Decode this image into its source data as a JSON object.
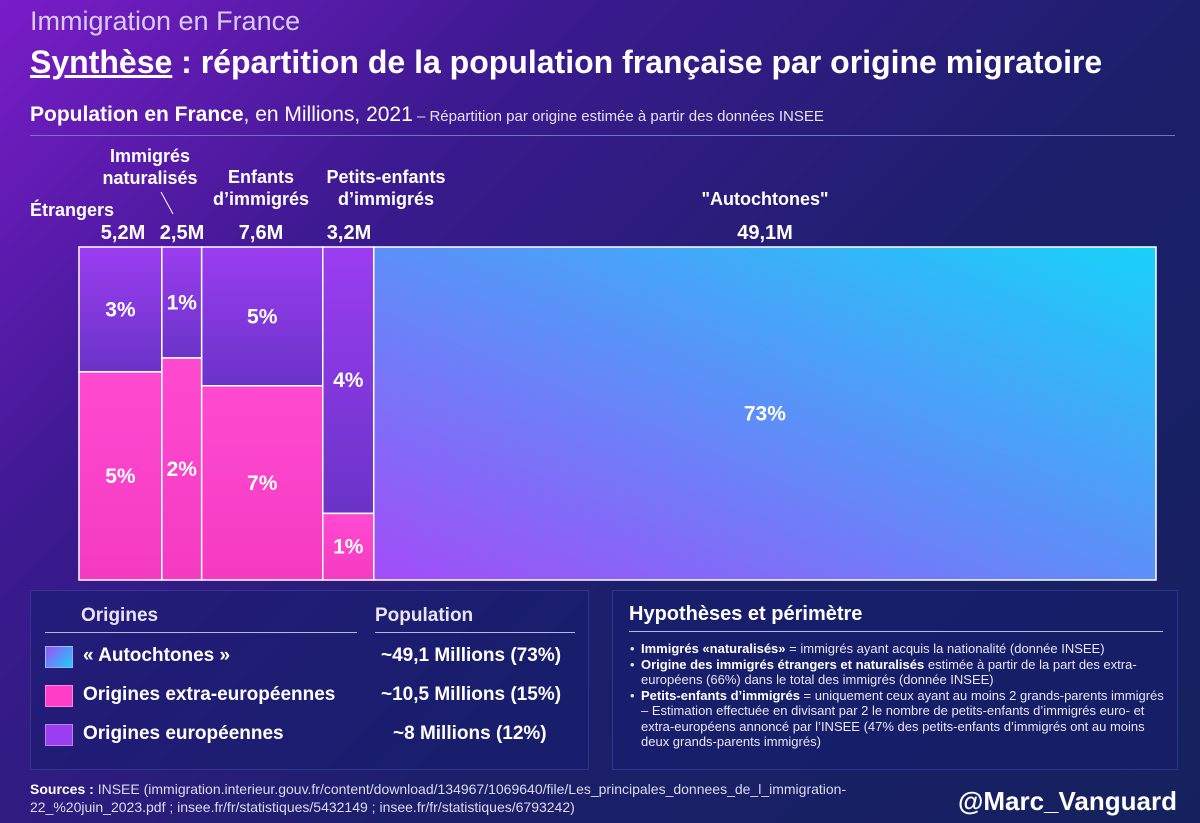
{
  "header": {
    "kicker": "Immigration en France",
    "title_underlined": "Synthèse",
    "title_rest": " : répartition de la population française par origine migratoire",
    "subtitle_bold": "Population en France",
    "subtitle_rest": ", en Millions, 2021",
    "subtitle_note": " – Répartition par origine estimée à partir des données INSEE"
  },
  "chart_data": {
    "type": "treemap",
    "unit": "Millions",
    "year": 2021,
    "categories": [
      {
        "label": "Étrangers",
        "total_label": "5,2M",
        "total": 5.2,
        "segments": [
          {
            "origin": "europeennes",
            "pct": 3,
            "label": "3%"
          },
          {
            "origin": "extra",
            "pct": 5,
            "label": "5%"
          }
        ]
      },
      {
        "label": "Immigrés naturalisés",
        "total_label": "2,5M",
        "total": 2.5,
        "segments": [
          {
            "origin": "europeennes",
            "pct": 1,
            "label": "1%"
          },
          {
            "origin": "extra",
            "pct": 2,
            "label": "2%"
          }
        ]
      },
      {
        "label": "Enfants d’immigrés",
        "total_label": "7,6M",
        "total": 7.6,
        "segments": [
          {
            "origin": "europeennes",
            "pct": 5,
            "label": "5%"
          },
          {
            "origin": "extra",
            "pct": 7,
            "label": "7%"
          }
        ]
      },
      {
        "label": "Petits-enfants d’immigrés",
        "total_label": "3,2M",
        "total": 3.2,
        "segments": [
          {
            "origin": "europeennes",
            "pct": 4,
            "label": "4%"
          },
          {
            "origin": "extra",
            "pct": 1,
            "label": "1%"
          }
        ]
      },
      {
        "label": "\"Autochtones\"",
        "total_label": "49,1M",
        "total": 49.1,
        "segments": [
          {
            "origin": "autochtones",
            "pct": 73,
            "label": "73%"
          }
        ]
      }
    ],
    "colors": {
      "autochtones_from": "#a34cf7",
      "autochtones_to": "#17d2f9",
      "extra": "#ff3ec8",
      "europeennes": "#9b3df0"
    }
  },
  "legend": {
    "origins_header": "Origines",
    "population_header": "Population",
    "rows": [
      {
        "label": "« Autochtones »",
        "population": "~49,1 Millions (73%)"
      },
      {
        "label": "Origines extra-européennes",
        "population": "~10,5 Millions (15%)"
      },
      {
        "label": "Origines européennes",
        "population": "~8 Millions (12%)"
      }
    ]
  },
  "hypotheses": {
    "title": "Hypothèses et périmètre",
    "items": [
      {
        "bold": "Immigrés «naturalisés»",
        "text": " = immigrés ayant acquis la nationalité (donnée INSEE)"
      },
      {
        "bold": "Origine des immigrés étrangers et naturalisés",
        "text": " estimée à partir de la part des extra-européens (66%) dans le total des immigrés (donnée INSEE)"
      },
      {
        "bold": "Petits-enfants d’immigrés",
        "text": " = uniquement ceux ayant au moins 2 grands-parents immigrés – Estimation effectuée en divisant par 2 le nombre de petits-enfants d’immigrés euro- et extra-européens annoncé par l’INSEE (47% des petits-enfants d’immigrés ont au moins deux grands-parents immigrés)"
      }
    ]
  },
  "footer": {
    "sources_label": "Sources :",
    "sources_text": " INSEE (immigration.interieur.gouv.fr/content/download/134967/1069640/file/Les_principales_donnees_de_l_immigration-22_%20juin_2023.pdf ; insee.fr/fr/statistiques/5432149 ; insee.fr/fr/statistiques/6793242)",
    "handle": "@Marc_Vanguard"
  }
}
